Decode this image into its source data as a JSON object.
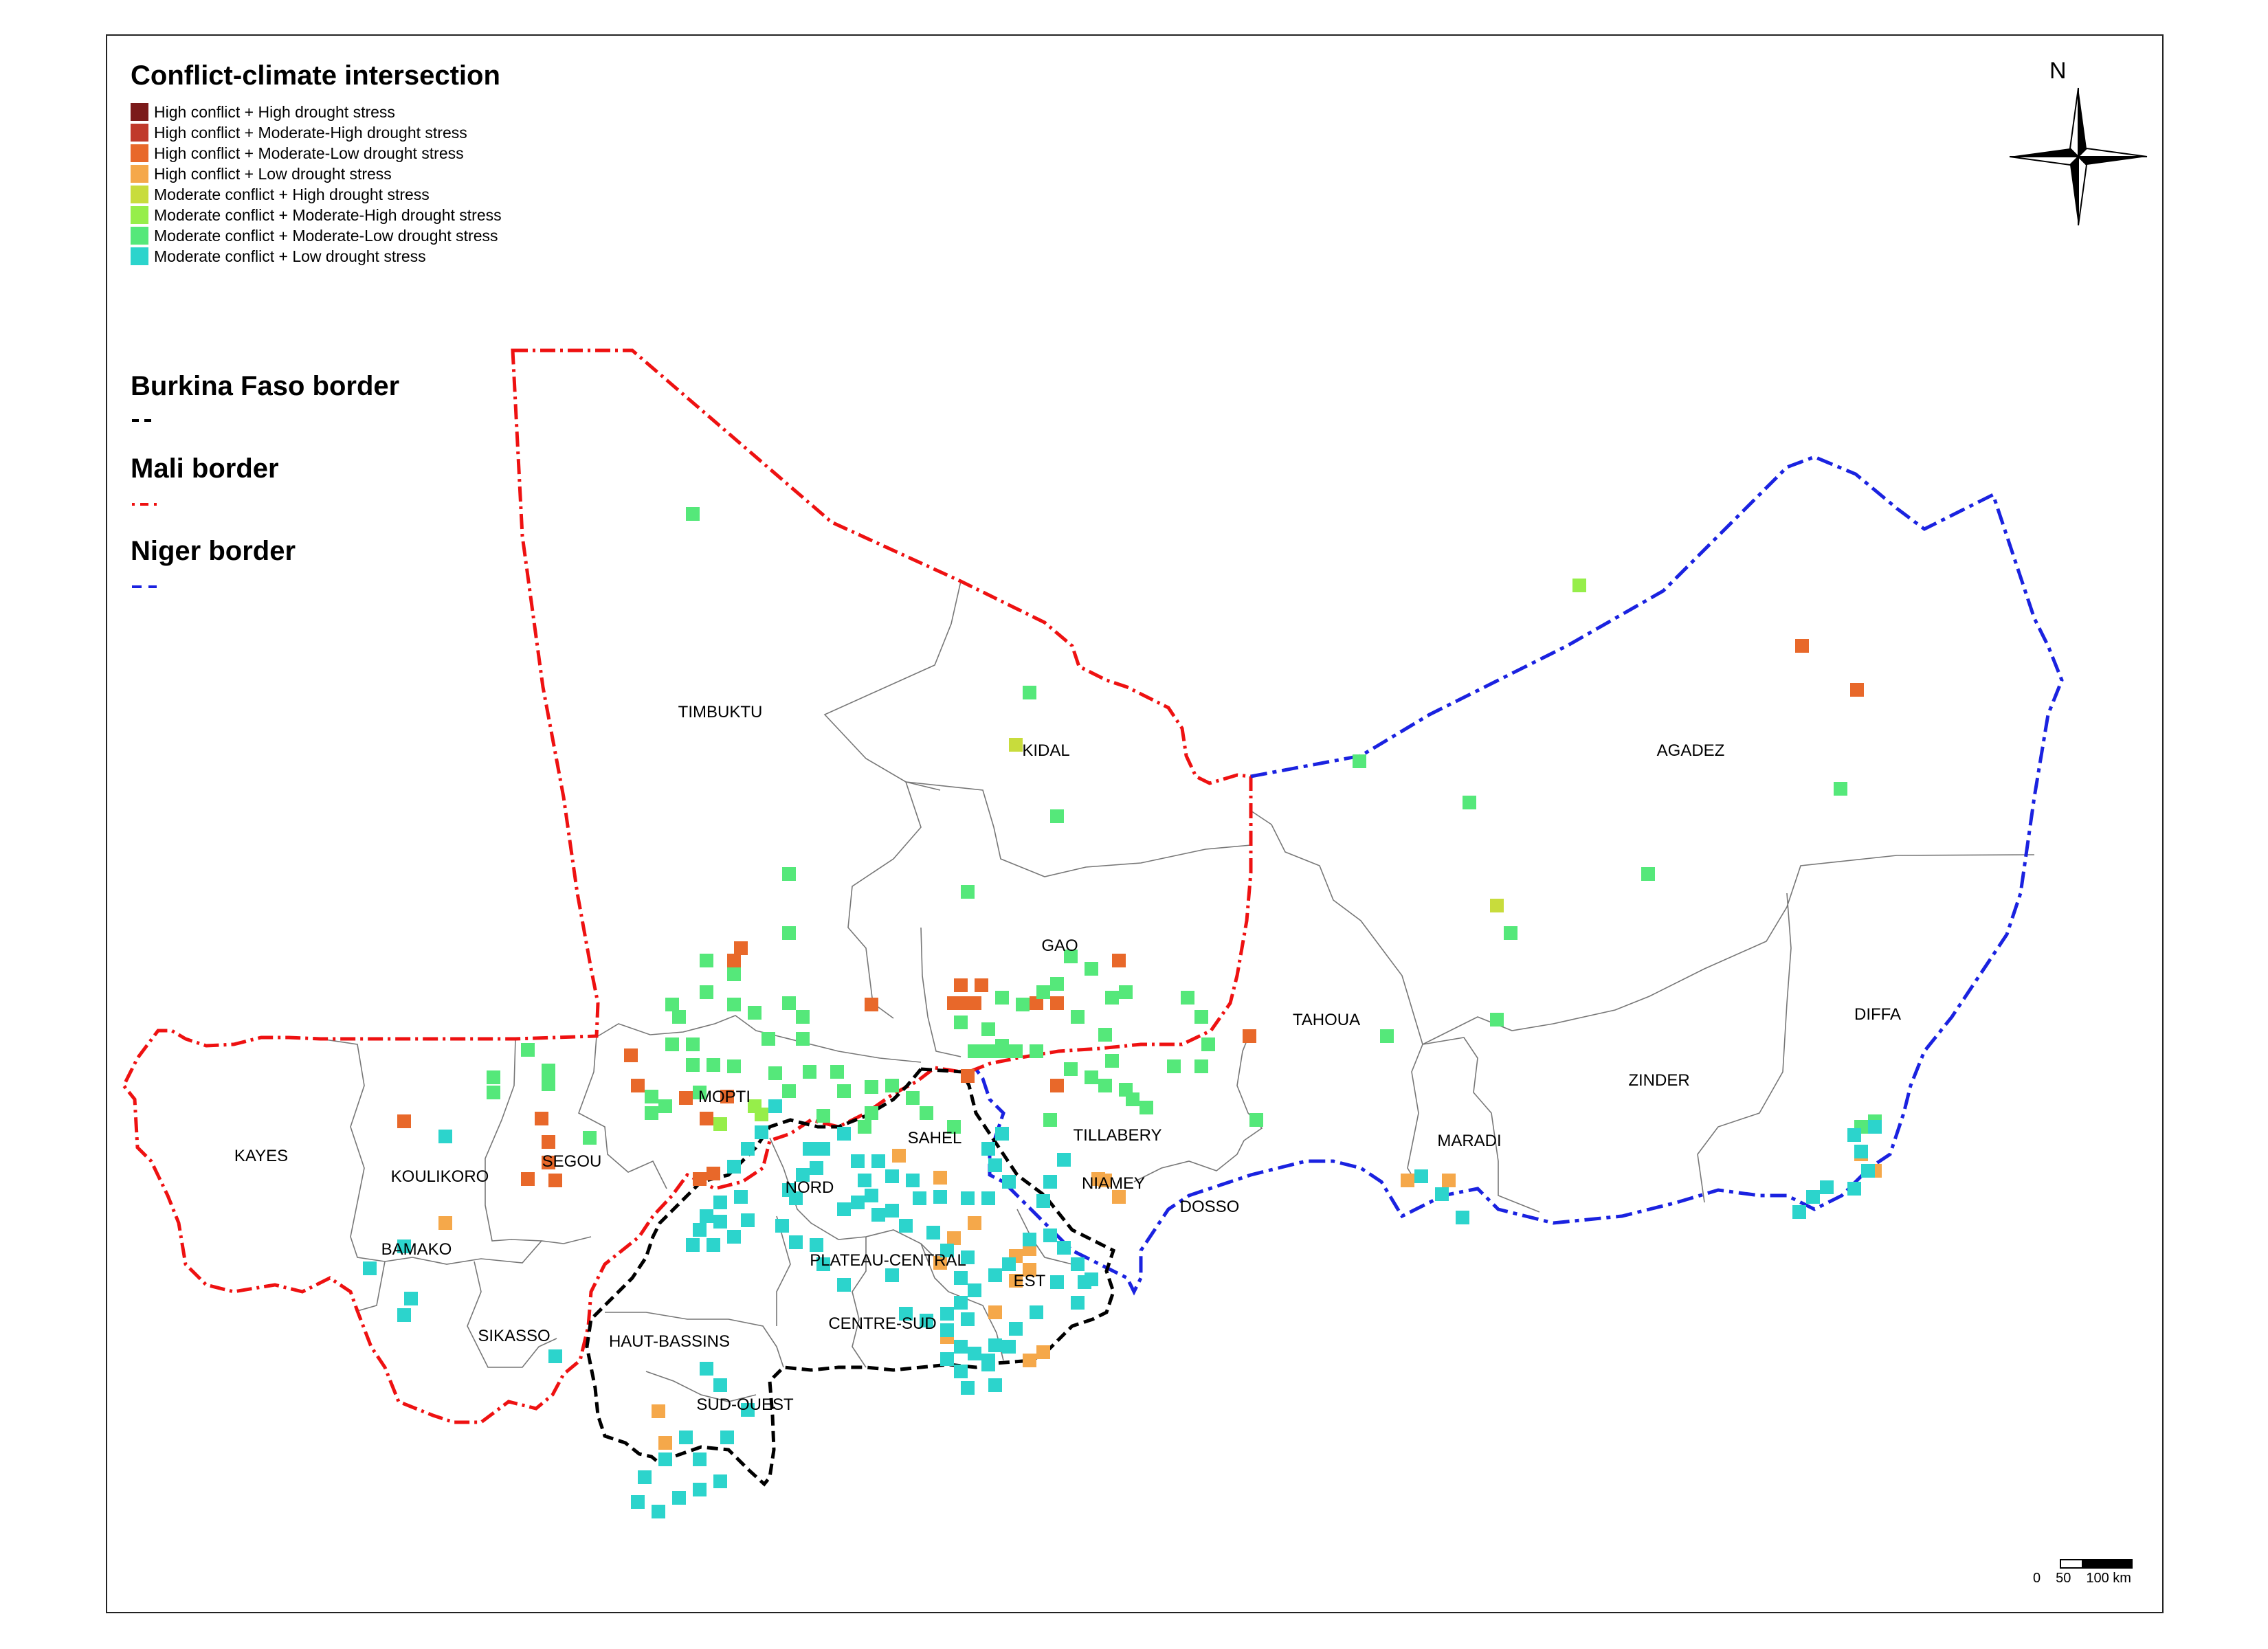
{
  "legend": {
    "title": "Conflict-climate intersection",
    "items": [
      {
        "label": "High conflict + High drought stress",
        "color": "#7b1a1a"
      },
      {
        "label": "High conflict + Moderate-High drought stress",
        "color": "#c0392b"
      },
      {
        "label": "High conflict + Moderate-Low drought stress",
        "color": "#e8682a"
      },
      {
        "label": "High conflict + Low drought stress",
        "color": "#f5a84a"
      },
      {
        "label": "Moderate conflict + High drought stress",
        "color": "#c8dc3c"
      },
      {
        "label": "Moderate conflict + Moderate-High drought stress",
        "color": "#96ee4a"
      },
      {
        "label": "Moderate conflict + Moderate-Low drought stress",
        "color": "#55e87a"
      },
      {
        "label": "Moderate conflict + Low drought stress",
        "color": "#2cd4cc"
      }
    ]
  },
  "borders": {
    "burkina": {
      "label": "Burkina Faso border",
      "color": "#000000"
    },
    "mali": {
      "label": "Mali border",
      "color": "#ee1111"
    },
    "niger": {
      "label": "Niger border",
      "color": "#1a22e0"
    }
  },
  "regions": {
    "kayes": "KAYES",
    "koulikoro": "KOULIKORO",
    "segou": "SEGOU",
    "bamako": "BAMAKO",
    "sikasso": "SIKASSO",
    "mopti": "MOPTI",
    "timbuktu": "TIMBUKTU",
    "kidal": "KIDAL",
    "gao": "GAO",
    "tahoua": "TAHOUA",
    "agadez": "AGADEZ",
    "zinder": "ZINDER",
    "diffa": "DIFFA",
    "maradi": "MARADI",
    "dosso": "DOSSO",
    "niamey": "NIAMEY",
    "tillabery": "TILLABERY",
    "sahel": "SAHEL",
    "nord": "NORD",
    "plateau_central": "PLATEAU-CENTRAL",
    "est": "EST",
    "centre_sud": "CENTRE-SUD",
    "haut_bassins": "HAUT-BASSINS",
    "sud_ouest": "SUD-OUEST"
  },
  "north_arrow": {
    "label": "N"
  },
  "scale_bar": {
    "ticks": [
      "0",
      "50",
      "100 km"
    ]
  },
  "cells": [
    [
      1,
      1008,
      748
    ],
    [
      3,
      1078,
      1380
    ],
    [
      3,
      1068,
      1398
    ],
    [
      3,
      1268,
      1462
    ],
    [
      3,
      2622,
      940
    ],
    [
      3,
      2702,
      1004
    ],
    [
      3,
      1628,
      1398
    ],
    [
      3,
      1388,
      1460
    ],
    [
      3,
      1818,
      1508
    ],
    [
      3,
      1398,
      1434
    ],
    [
      3,
      1428,
      1434
    ],
    [
      3,
      1398,
      1460
    ],
    [
      3,
      1418,
      1460
    ],
    [
      3,
      1508,
      1460
    ],
    [
      3,
      1538,
      1460
    ],
    [
      3,
      1538,
      1580
    ],
    [
      3,
      998,
      1598
    ],
    [
      3,
      918,
      1536
    ],
    [
      3,
      928,
      1580
    ],
    [
      3,
      1058,
      1596
    ],
    [
      3,
      1038,
      1708
    ],
    [
      3,
      1028,
      1628
    ],
    [
      3,
      788,
      1628
    ],
    [
      3,
      798,
      1662
    ],
    [
      3,
      798,
      1692
    ],
    [
      3,
      768,
      1716
    ],
    [
      3,
      588,
      1632
    ],
    [
      3,
      808,
      1718
    ],
    [
      3,
      1018,
      1716
    ],
    [
      3,
      1408,
      1566
    ],
    [
      4,
      1368,
      1714
    ],
    [
      4,
      1498,
      1848
    ],
    [
      4,
      1478,
      1864
    ],
    [
      4,
      1378,
      1946
    ],
    [
      4,
      1448,
      1910
    ],
    [
      4,
      1608,
      1718
    ],
    [
      4,
      2048,
      1718
    ],
    [
      4,
      2108,
      1718
    ],
    [
      4,
      2708,
      1680
    ],
    [
      4,
      2728,
      1704
    ],
    [
      4,
      958,
      2054
    ],
    [
      4,
      968,
      2100
    ],
    [
      4,
      1498,
      1980
    ],
    [
      4,
      1518,
      1968
    ],
    [
      4,
      1498,
      1818
    ],
    [
      4,
      1418,
      1780
    ],
    [
      4,
      1388,
      1802
    ],
    [
      4,
      1478,
      1828
    ],
    [
      4,
      1308,
      1682
    ],
    [
      4,
      648,
      1780
    ],
    [
      4,
      1628,
      1742
    ],
    [
      4,
      1598,
      1716
    ],
    [
      4,
      1368,
      1838
    ],
    [
      5,
      1478,
      1084
    ],
    [
      5,
      2178,
      1318
    ],
    [
      6,
      2298,
      852
    ],
    [
      6,
      1098,
      1610
    ],
    [
      6,
      1108,
      1622
    ],
    [
      6,
      1048,
      1636
    ],
    [
      7,
      1008,
      748
    ],
    [
      7,
      1498,
      1008
    ],
    [
      7,
      1538,
      1188
    ],
    [
      7,
      1408,
      1298
    ],
    [
      7,
      1148,
      1272
    ],
    [
      7,
      1148,
      1358
    ],
    [
      7,
      1028,
      1398
    ],
    [
      7,
      1068,
      1418
    ],
    [
      7,
      1028,
      1444
    ],
    [
      7,
      978,
      1462
    ],
    [
      7,
      1558,
      1392
    ],
    [
      7,
      1588,
      1410
    ],
    [
      7,
      1538,
      1432
    ],
    [
      7,
      1518,
      1444
    ],
    [
      7,
      1458,
      1452
    ],
    [
      7,
      1488,
      1462
    ],
    [
      7,
      1618,
      1452
    ],
    [
      7,
      1638,
      1444
    ],
    [
      7,
      1728,
      1452
    ],
    [
      7,
      1748,
      1480
    ],
    [
      7,
      1398,
      1488
    ],
    [
      7,
      1438,
      1498
    ],
    [
      7,
      1458,
      1522
    ],
    [
      7,
      1418,
      1530
    ],
    [
      7,
      1438,
      1530
    ],
    [
      7,
      1458,
      1530
    ],
    [
      7,
      1478,
      1530
    ],
    [
      7,
      1508,
      1530
    ],
    [
      7,
      1568,
      1480
    ],
    [
      7,
      1608,
      1506
    ],
    [
      7,
      1618,
      1544
    ],
    [
      7,
      1588,
      1568
    ],
    [
      7,
      1978,
      1108
    ],
    [
      7,
      2138,
      1168
    ],
    [
      7,
      2398,
      1272
    ],
    [
      7,
      2678,
      1148
    ],
    [
      7,
      2198,
      1358
    ],
    [
      7,
      2178,
      1484
    ],
    [
      7,
      2018,
      1508
    ],
    [
      7,
      1828,
      1630
    ],
    [
      7,
      1148,
      1460
    ],
    [
      7,
      1168,
      1480
    ],
    [
      7,
      1068,
      1462
    ],
    [
      7,
      1098,
      1474
    ],
    [
      7,
      988,
      1480
    ],
    [
      7,
      978,
      1520
    ],
    [
      7,
      1008,
      1550
    ],
    [
      7,
      1008,
      1520
    ],
    [
      7,
      1038,
      1550
    ],
    [
      7,
      1068,
      1552
    ],
    [
      7,
      1018,
      1590
    ],
    [
      7,
      798,
      1558
    ],
    [
      7,
      798,
      1578
    ],
    [
      7,
      858,
      1656
    ],
    [
      7,
      718,
      1568
    ],
    [
      7,
      718,
      1590
    ],
    [
      7,
      768,
      1528
    ],
    [
      7,
      948,
      1596
    ],
    [
      7,
      948,
      1620
    ],
    [
      7,
      968,
      1610
    ],
    [
      7,
      1118,
      1512
    ],
    [
      7,
      1128,
      1562
    ],
    [
      7,
      1168,
      1512
    ],
    [
      7,
      1178,
      1560
    ],
    [
      7,
      1148,
      1588
    ],
    [
      7,
      1218,
      1560
    ],
    [
      7,
      1228,
      1588
    ],
    [
      7,
      1198,
      1624
    ],
    [
      7,
      1258,
      1640
    ],
    [
      7,
      1268,
      1620
    ],
    [
      7,
      1328,
      1598
    ],
    [
      7,
      1348,
      1620
    ],
    [
      7,
      1388,
      1640
    ],
    [
      7,
      1268,
      1582
    ],
    [
      7,
      1298,
      1580
    ],
    [
      7,
      1558,
      1556
    ],
    [
      7,
      1608,
      1580
    ],
    [
      7,
      1638,
      1586
    ],
    [
      7,
      1648,
      1600
    ],
    [
      7,
      1668,
      1612
    ],
    [
      7,
      1708,
      1552
    ],
    [
      7,
      1748,
      1552
    ],
    [
      7,
      1758,
      1520
    ],
    [
      7,
      1528,
      1630
    ],
    [
      7,
      2708,
      1640
    ],
    [
      7,
      2728,
      1632
    ],
    [
      8,
      648,
      1654
    ],
    [
      8,
      1248,
      1690
    ],
    [
      8,
      1278,
      1690
    ],
    [
      8,
      1298,
      1712
    ],
    [
      8,
      1258,
      1718
    ],
    [
      8,
      1328,
      1718
    ],
    [
      8,
      1338,
      1744
    ],
    [
      8,
      1368,
      1742
    ],
    [
      8,
      1408,
      1744
    ],
    [
      8,
      1438,
      1744
    ],
    [
      8,
      1468,
      1720
    ],
    [
      8,
      1448,
      1696
    ],
    [
      8,
      1438,
      1672
    ],
    [
      8,
      1458,
      1650
    ],
    [
      8,
      1228,
      1650
    ],
    [
      8,
      1198,
      1672
    ],
    [
      8,
      1268,
      1740
    ],
    [
      8,
      1298,
      1762
    ],
    [
      8,
      1318,
      1784
    ],
    [
      8,
      1358,
      1794
    ],
    [
      8,
      1378,
      1820
    ],
    [
      8,
      1408,
      1830
    ],
    [
      8,
      1468,
      1840
    ],
    [
      8,
      1498,
      1804
    ],
    [
      8,
      1528,
      1798
    ],
    [
      8,
      1548,
      1816
    ],
    [
      8,
      1568,
      1840
    ],
    [
      8,
      1578,
      1866
    ],
    [
      8,
      1538,
      1866
    ],
    [
      8,
      1448,
      1856
    ],
    [
      8,
      1418,
      1878
    ],
    [
      8,
      1398,
      1896
    ],
    [
      8,
      1378,
      1912
    ],
    [
      8,
      1378,
      1936
    ],
    [
      8,
      1398,
      1960
    ],
    [
      8,
      1418,
      1970
    ],
    [
      8,
      1438,
      1980
    ],
    [
      8,
      1468,
      1960
    ],
    [
      8,
      1478,
      1934
    ],
    [
      8,
      1508,
      1910
    ],
    [
      8,
      1568,
      1896
    ],
    [
      8,
      1588,
      1862
    ],
    [
      8,
      1398,
      1860
    ],
    [
      8,
      1128,
      1610
    ],
    [
      8,
      1108,
      1648
    ],
    [
      8,
      1088,
      1672
    ],
    [
      8,
      1068,
      1698
    ],
    [
      8,
      1028,
      1770
    ],
    [
      8,
      1048,
      1778
    ],
    [
      8,
      1088,
      1776
    ],
    [
      8,
      1078,
      1742
    ],
    [
      8,
      1048,
      1750
    ],
    [
      8,
      1018,
      1790
    ],
    [
      8,
      1008,
      1812
    ],
    [
      8,
      1038,
      1812
    ],
    [
      8,
      1068,
      1800
    ],
    [
      8,
      1028,
      1992
    ],
    [
      8,
      1048,
      2016
    ],
    [
      8,
      1088,
      2052
    ],
    [
      8,
      1058,
      2092
    ],
    [
      8,
      998,
      2092
    ],
    [
      8,
      968,
      2124
    ],
    [
      8,
      1018,
      2124
    ],
    [
      8,
      1048,
      2156
    ],
    [
      8,
      1018,
      2168
    ],
    [
      8,
      988,
      2180
    ],
    [
      8,
      938,
      2150
    ],
    [
      8,
      928,
      2186
    ],
    [
      8,
      958,
      2200
    ],
    [
      8,
      1138,
      1784
    ],
    [
      8,
      1158,
      1808
    ],
    [
      8,
      1188,
      1812
    ],
    [
      8,
      1198,
      1840
    ],
    [
      8,
      1228,
      1870
    ],
    [
      8,
      1298,
      1856
    ],
    [
      8,
      1318,
      1912
    ],
    [
      8,
      1348,
      1922
    ],
    [
      8,
      1378,
      1978
    ],
    [
      8,
      1398,
      1996
    ],
    [
      8,
      1408,
      1920
    ],
    [
      8,
      1408,
      2020
    ],
    [
      8,
      1438,
      1986
    ],
    [
      8,
      1448,
      2016
    ],
    [
      8,
      1448,
      1958
    ],
    [
      8,
      2068,
      1712
    ],
    [
      8,
      2098,
      1738
    ],
    [
      8,
      2128,
      1772
    ],
    [
      8,
      2618,
      1764
    ],
    [
      8,
      2638,
      1742
    ],
    [
      8,
      2658,
      1728
    ],
    [
      8,
      2698,
      1730
    ],
    [
      8,
      2718,
      1704
    ],
    [
      8,
      2708,
      1676
    ],
    [
      8,
      2698,
      1652
    ],
    [
      8,
      2728,
      1640
    ],
    [
      8,
      1548,
      1688
    ],
    [
      8,
      1528,
      1720
    ],
    [
      8,
      1518,
      1748
    ],
    [
      8,
      588,
      1814
    ],
    [
      8,
      538,
      1846
    ],
    [
      8,
      598,
      1890
    ],
    [
      8,
      588,
      1914
    ],
    [
      8,
      808,
      1974
    ],
    [
      8,
      1248,
      1750
    ],
    [
      8,
      1228,
      1760
    ],
    [
      8,
      1278,
      1768
    ],
    [
      8,
      1178,
      1672
    ],
    [
      8,
      1188,
      1700
    ],
    [
      8,
      1168,
      1710
    ],
    [
      8,
      1158,
      1744
    ],
    [
      8,
      1148,
      1732
    ]
  ]
}
